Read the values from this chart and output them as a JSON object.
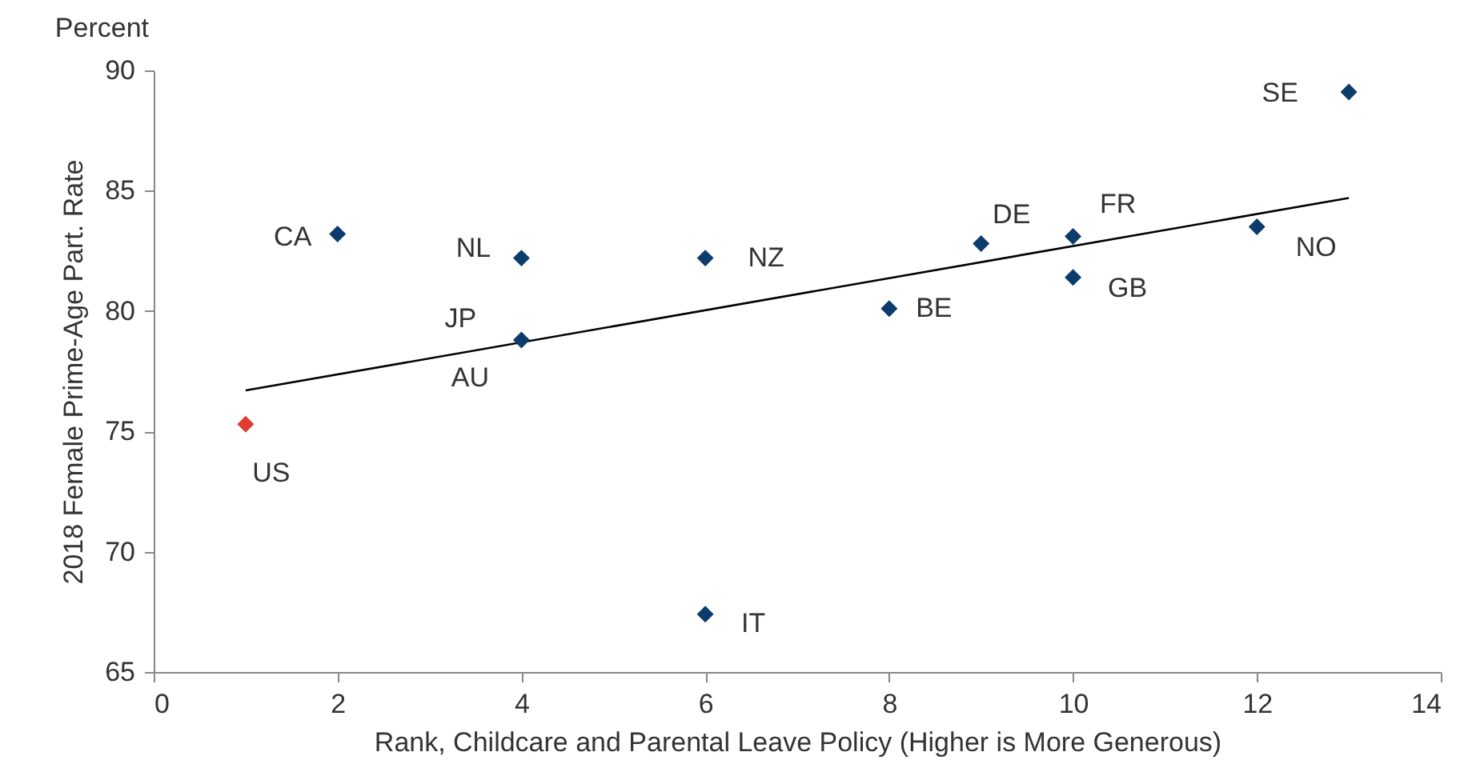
{
  "chart_data": {
    "type": "scatter",
    "xlabel": "Rank, Childcare and Parental Leave Policy (Higher is More Generous)",
    "ylabel": "2018 Female Prime-Age Part. Rate",
    "xlim": [
      0,
      14
    ],
    "xticks": [
      0,
      2,
      4,
      6,
      8,
      10,
      12,
      14
    ],
    "ylim": [
      65,
      90
    ],
    "yticks": [
      65,
      70,
      75,
      80,
      85,
      90
    ],
    "grid": false,
    "series": [
      {
        "color": "#0b3c6b",
        "marker": "diamond",
        "x": [
          2,
          4,
          4,
          6,
          6,
          8,
          9,
          10,
          10,
          12,
          13
        ],
        "values": [
          83.2,
          82.2,
          78.8,
          82.2,
          67.4,
          80.1,
          82.8,
          83.1,
          81.4,
          83.5,
          89.1
        ]
      },
      {
        "color": "#e03c31",
        "marker": "diamond",
        "x": [
          1
        ],
        "values": [
          75.3
        ]
      },
      {
        "type": "line",
        "color": "#000000",
        "x": [
          1,
          13
        ],
        "values": [
          76.7,
          84.7
        ]
      }
    ],
    "annotations": [
      "Percent",
      {
        "text": "CA",
        "x": 2,
        "y": 83.2
      },
      {
        "text": "NL",
        "x": 4,
        "y": 82.2
      },
      {
        "text": "NZ",
        "x": 6,
        "y": 82.2
      },
      {
        "text": "JP",
        "x": 4,
        "y": 78.8
      },
      {
        "text": "AU",
        "x": 4,
        "y": 78.8
      },
      {
        "text": "US",
        "x": 1,
        "y": 75.3
      },
      {
        "text": "IT",
        "x": 6,
        "y": 67.4
      },
      {
        "text": "BE",
        "x": 8,
        "y": 80.1
      },
      {
        "text": "DE",
        "x": 9,
        "y": 82.8
      },
      {
        "text": "FR",
        "x": 10,
        "y": 83.1
      },
      {
        "text": "GB",
        "x": 10,
        "y": 81.4
      },
      {
        "text": "NO",
        "x": 12,
        "y": 83.5
      },
      {
        "text": "SE",
        "x": 13,
        "y": 89.1
      }
    ]
  }
}
